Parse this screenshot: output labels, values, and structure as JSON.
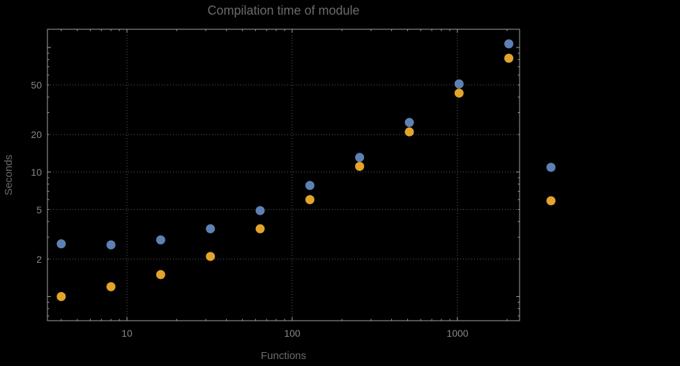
{
  "chart_data": {
    "type": "scatter",
    "title": "Compilation time of module",
    "xlabel": "Functions",
    "ylabel": "Seconds",
    "xscale": "log",
    "yscale": "log",
    "xlim": [
      3.3,
      2380
    ],
    "ylim": [
      0.64,
      140
    ],
    "grid": true,
    "x": [
      4,
      8,
      16,
      32,
      64,
      128,
      256,
      512,
      1024,
      2048
    ],
    "series": [
      {
        "name": "series-1-blue",
        "color": "#5E81B5",
        "values": [
          2.65,
          2.6,
          2.85,
          3.5,
          4.9,
          7.8,
          13.1,
          25,
          51,
          107
        ]
      },
      {
        "name": "series-2-orange",
        "color": "#E3A42C",
        "values": [
          1.0,
          1.2,
          1.5,
          2.1,
          3.5,
          6.0,
          11.1,
          21,
          43,
          82
        ]
      }
    ],
    "x_ticks": [
      {
        "value": 10,
        "label": "10"
      },
      {
        "value": 100,
        "label": "100"
      },
      {
        "value": 1000,
        "label": "1000"
      }
    ],
    "y_ticks": [
      {
        "value": 50,
        "label": "50"
      },
      {
        "value": 20,
        "label": "20"
      },
      {
        "value": 10,
        "label": "10"
      },
      {
        "value": 5,
        "label": "5"
      },
      {
        "value": 2,
        "label": "2"
      }
    ],
    "legend": {
      "position": "right",
      "markers": [
        {
          "name": "legend-marker-series-1",
          "color": "#5E81B5"
        },
        {
          "name": "legend-marker-series-2",
          "color": "#E3A42C"
        }
      ]
    },
    "colors": {
      "background": "#000000",
      "frame": "#a6a6a6",
      "grid": "#646464",
      "title": "#696c6f",
      "tick_label": "#85888b"
    }
  }
}
